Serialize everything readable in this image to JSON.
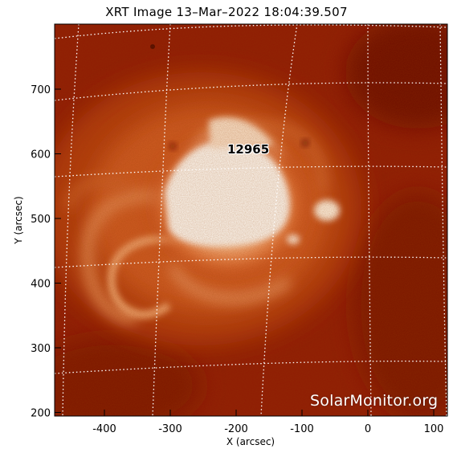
{
  "title": "XRT Image 13–Mar–2022 18:04:39.507",
  "active_region": "12965",
  "watermark": "SolarMonitor.org",
  "x_axis": {
    "label": "X (arcsec)",
    "ticks": [
      "-400",
      "-300",
      "-200",
      "-100",
      "0",
      "100"
    ]
  },
  "y_axis": {
    "label": "Y (arcsec)",
    "ticks": [
      "200",
      "300",
      "400",
      "500",
      "600",
      "700"
    ]
  },
  "colors": {
    "background": "#8f1a05",
    "bright_core": "#ffffff",
    "glow": "#f4a066",
    "grid": "#ffffff"
  }
}
